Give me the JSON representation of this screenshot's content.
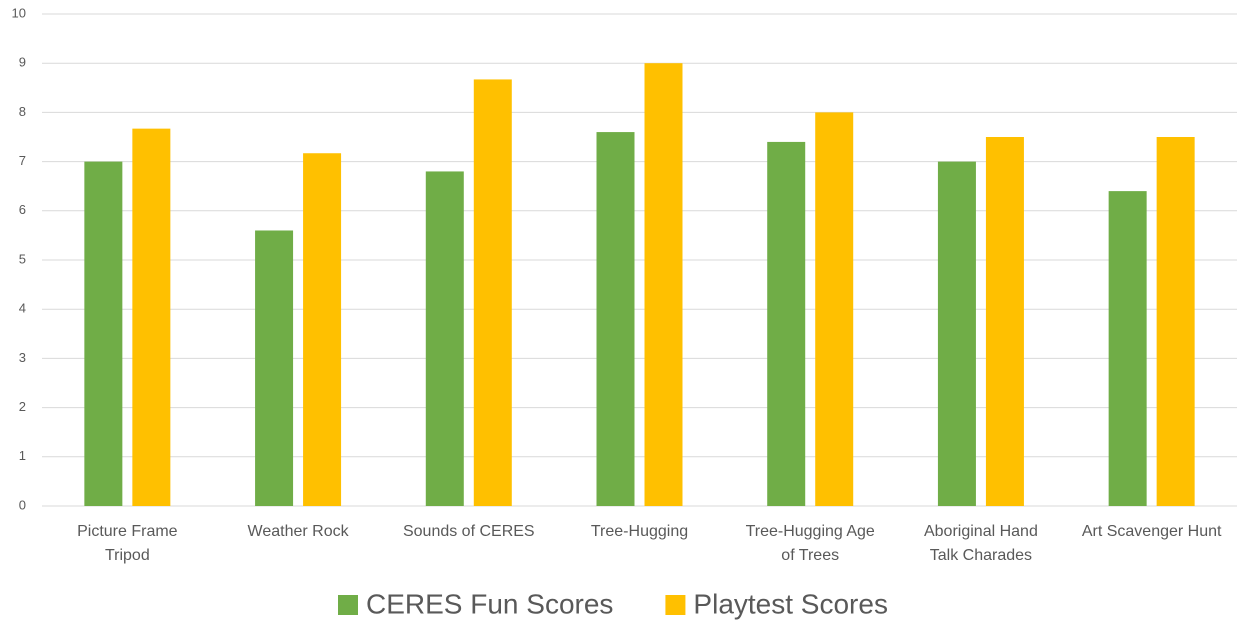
{
  "chart_data": {
    "type": "bar",
    "categories": [
      "Picture Frame Tripod",
      "Weather Rock",
      "Sounds of CERES",
      "Tree-Hugging",
      "Tree-Hugging Age of Trees",
      "Aboriginal Hand Talk Charades",
      "Art Scavenger Hunt"
    ],
    "series": [
      {
        "name": "CERES Fun Scores",
        "color": "#70ad47",
        "values": [
          7.0,
          5.6,
          6.8,
          7.6,
          7.4,
          7.0,
          6.4
        ]
      },
      {
        "name": "Playtest Scores",
        "color": "#ffc000",
        "values": [
          7.67,
          7.17,
          8.67,
          9.0,
          8.0,
          7.5,
          7.5
        ]
      }
    ],
    "ylim": [
      0,
      10
    ],
    "yticks": [
      0,
      1,
      2,
      3,
      4,
      5,
      6,
      7,
      8,
      9,
      10
    ],
    "grid": true,
    "legend": "bottom"
  }
}
